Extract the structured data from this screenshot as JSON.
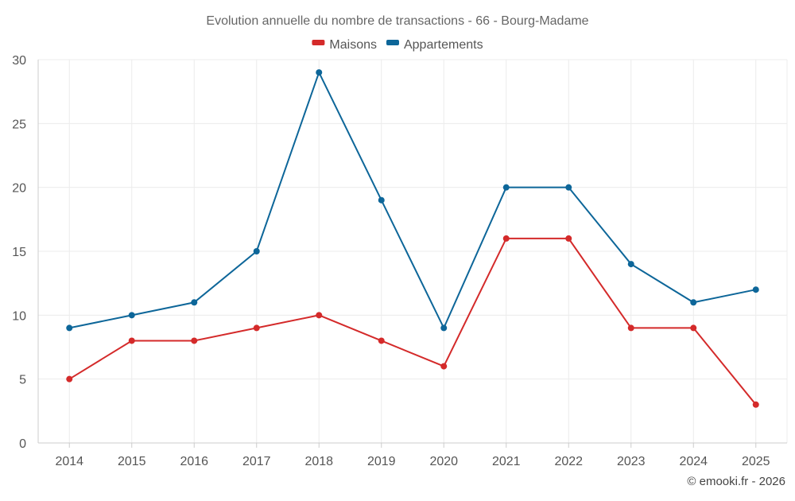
{
  "chart_data": {
    "type": "line",
    "title": "Evolution annuelle du nombre de transactions - 66 - Bourg-Madame",
    "xlabel": "",
    "ylabel": "",
    "categories": [
      "2014",
      "2015",
      "2016",
      "2017",
      "2018",
      "2019",
      "2020",
      "2021",
      "2022",
      "2023",
      "2024",
      "2025"
    ],
    "ylim": [
      0,
      30
    ],
    "yticks": [
      0,
      5,
      10,
      15,
      20,
      25,
      30
    ],
    "grid": true,
    "legend_position": "top-center",
    "series": [
      {
        "name": "Maisons",
        "color": "#d42a2a",
        "values": [
          5,
          8,
          8,
          9,
          10,
          8,
          6,
          16,
          16,
          9,
          9,
          3
        ]
      },
      {
        "name": "Appartements",
        "color": "#0d6699",
        "values": [
          9,
          10,
          11,
          15,
          29,
          19,
          9,
          20,
          20,
          14,
          11,
          12
        ]
      }
    ]
  },
  "credit": "© emooki.fr - 2026"
}
